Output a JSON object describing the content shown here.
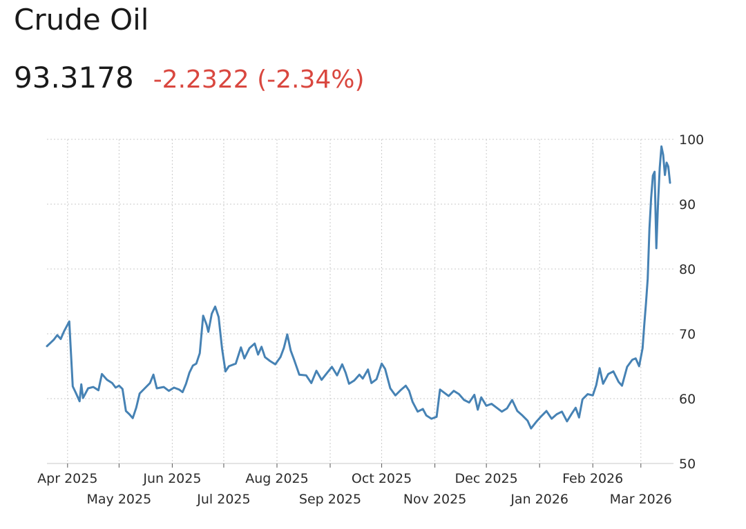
{
  "header": {
    "title": "Crude Oil",
    "price": "93.3178",
    "change": "-2.2322 (-2.34%)"
  },
  "colors": {
    "line": "#4682b4",
    "grid": "#c8c8c8",
    "change_negative": "#d9473f"
  },
  "chart_data": {
    "type": "line",
    "title": "Crude Oil",
    "xlabel": "",
    "ylabel": "",
    "x_range": [
      "2025-03-20",
      "2026-03-20"
    ],
    "ylim": [
      50,
      100
    ],
    "y_ticks": [
      50,
      60,
      70,
      80,
      90,
      100
    ],
    "y_axis_position": "right",
    "grid": true,
    "x_tick_labels_upper": [
      {
        "date": "2025-04-01",
        "label": "Apr 2025"
      },
      {
        "date": "2025-06-01",
        "label": "Jun 2025"
      },
      {
        "date": "2025-08-01",
        "label": "Aug 2025"
      },
      {
        "date": "2025-10-01",
        "label": "Oct 2025"
      },
      {
        "date": "2025-12-01",
        "label": "Dec 2025"
      },
      {
        "date": "2026-02-01",
        "label": "Feb 2026"
      }
    ],
    "x_tick_labels_lower": [
      {
        "date": "2025-05-01",
        "label": "May 2025"
      },
      {
        "date": "2025-07-01",
        "label": "Jul 2025"
      },
      {
        "date": "2025-09-01",
        "label": "Sep 2025"
      },
      {
        "date": "2025-11-01",
        "label": "Nov 2025"
      },
      {
        "date": "2026-01-01",
        "label": "Jan 2026"
      },
      {
        "date": "2026-03-01",
        "label": "Mar 2026"
      }
    ],
    "series": [
      {
        "values": [
          [
            "2025-03-20",
            68.1
          ],
          [
            "2025-03-22",
            68.6
          ],
          [
            "2025-03-24",
            69.1
          ],
          [
            "2025-03-26",
            69.8
          ],
          [
            "2025-03-28",
            69.2
          ],
          [
            "2025-03-30",
            70.4
          ],
          [
            "2025-04-01",
            71.4
          ],
          [
            "2025-04-02",
            71.9
          ],
          [
            "2025-04-03",
            66.9
          ],
          [
            "2025-04-04",
            61.9
          ],
          [
            "2025-04-06",
            60.8
          ],
          [
            "2025-04-08",
            59.6
          ],
          [
            "2025-04-09",
            62.2
          ],
          [
            "2025-04-10",
            60.1
          ],
          [
            "2025-04-13",
            61.6
          ],
          [
            "2025-04-16",
            61.8
          ],
          [
            "2025-04-19",
            61.3
          ],
          [
            "2025-04-21",
            63.8
          ],
          [
            "2025-04-24",
            62.9
          ],
          [
            "2025-04-27",
            62.4
          ],
          [
            "2025-04-29",
            61.7
          ],
          [
            "2025-05-01",
            62.0
          ],
          [
            "2025-05-03",
            61.5
          ],
          [
            "2025-05-05",
            58.1
          ],
          [
            "2025-05-07",
            57.6
          ],
          [
            "2025-05-09",
            57.0
          ],
          [
            "2025-05-11",
            58.6
          ],
          [
            "2025-05-13",
            60.8
          ],
          [
            "2025-05-16",
            61.6
          ],
          [
            "2025-05-19",
            62.4
          ],
          [
            "2025-05-21",
            63.7
          ],
          [
            "2025-05-23",
            61.6
          ],
          [
            "2025-05-27",
            61.8
          ],
          [
            "2025-05-30",
            61.2
          ],
          [
            "2025-06-02",
            61.7
          ],
          [
            "2025-06-05",
            61.4
          ],
          [
            "2025-06-07",
            61.0
          ],
          [
            "2025-06-09",
            62.3
          ],
          [
            "2025-06-11",
            64.0
          ],
          [
            "2025-06-13",
            65.1
          ],
          [
            "2025-06-15",
            65.4
          ],
          [
            "2025-06-17",
            67.0
          ],
          [
            "2025-06-19",
            72.8
          ],
          [
            "2025-06-21",
            71.4
          ],
          [
            "2025-06-22",
            70.3
          ],
          [
            "2025-06-24",
            73.1
          ],
          [
            "2025-06-26",
            74.2
          ],
          [
            "2025-06-28",
            72.6
          ],
          [
            "2025-06-30",
            67.7
          ],
          [
            "2025-07-02",
            64.2
          ],
          [
            "2025-07-04",
            65.0
          ],
          [
            "2025-07-08",
            65.4
          ],
          [
            "2025-07-11",
            67.9
          ],
          [
            "2025-07-13",
            66.2
          ],
          [
            "2025-07-16",
            67.8
          ],
          [
            "2025-07-19",
            68.5
          ],
          [
            "2025-07-21",
            66.8
          ],
          [
            "2025-07-23",
            68.0
          ],
          [
            "2025-07-25",
            66.4
          ],
          [
            "2025-07-28",
            65.8
          ],
          [
            "2025-07-31",
            65.3
          ],
          [
            "2025-08-03",
            66.4
          ],
          [
            "2025-08-05",
            67.8
          ],
          [
            "2025-08-07",
            69.9
          ],
          [
            "2025-08-09",
            67.4
          ],
          [
            "2025-08-11",
            66.0
          ],
          [
            "2025-08-14",
            63.7
          ],
          [
            "2025-08-18",
            63.6
          ],
          [
            "2025-08-21",
            62.4
          ],
          [
            "2025-08-24",
            64.3
          ],
          [
            "2025-08-27",
            62.9
          ],
          [
            "2025-08-30",
            63.9
          ],
          [
            "2025-09-02",
            64.9
          ],
          [
            "2025-09-05",
            63.6
          ],
          [
            "2025-09-08",
            65.3
          ],
          [
            "2025-09-10",
            64.0
          ],
          [
            "2025-09-12",
            62.3
          ],
          [
            "2025-09-15",
            62.8
          ],
          [
            "2025-09-18",
            63.7
          ],
          [
            "2025-09-20",
            63.1
          ],
          [
            "2025-09-23",
            64.5
          ],
          [
            "2025-09-25",
            62.4
          ],
          [
            "2025-09-28",
            63.0
          ],
          [
            "2025-10-01",
            65.4
          ],
          [
            "2025-10-03",
            64.6
          ],
          [
            "2025-10-06",
            61.6
          ],
          [
            "2025-10-09",
            60.5
          ],
          [
            "2025-10-12",
            61.3
          ],
          [
            "2025-10-15",
            62.0
          ],
          [
            "2025-10-17",
            61.2
          ],
          [
            "2025-10-19",
            59.5
          ],
          [
            "2025-10-22",
            58.0
          ],
          [
            "2025-10-25",
            58.4
          ],
          [
            "2025-10-27",
            57.4
          ],
          [
            "2025-10-30",
            56.9
          ],
          [
            "2025-11-02",
            57.2
          ],
          [
            "2025-11-04",
            61.4
          ],
          [
            "2025-11-06",
            61.0
          ],
          [
            "2025-11-09",
            60.4
          ],
          [
            "2025-11-12",
            61.2
          ],
          [
            "2025-11-15",
            60.7
          ],
          [
            "2025-11-18",
            59.8
          ],
          [
            "2025-11-21",
            59.4
          ],
          [
            "2025-11-24",
            60.6
          ],
          [
            "2025-11-26",
            58.3
          ],
          [
            "2025-11-28",
            60.2
          ],
          [
            "2025-12-01",
            58.9
          ],
          [
            "2025-12-04",
            59.2
          ],
          [
            "2025-12-07",
            58.6
          ],
          [
            "2025-12-10",
            58.0
          ],
          [
            "2025-12-13",
            58.5
          ],
          [
            "2025-12-16",
            59.8
          ],
          [
            "2025-12-19",
            58.1
          ],
          [
            "2025-12-22",
            57.4
          ],
          [
            "2025-12-25",
            56.6
          ],
          [
            "2025-12-27",
            55.4
          ],
          [
            "2025-12-30",
            56.4
          ],
          [
            "2026-01-02",
            57.3
          ],
          [
            "2026-01-05",
            58.1
          ],
          [
            "2026-01-08",
            56.9
          ],
          [
            "2026-01-11",
            57.6
          ],
          [
            "2026-01-14",
            58.0
          ],
          [
            "2026-01-17",
            56.5
          ],
          [
            "2026-01-20",
            57.8
          ],
          [
            "2026-01-22",
            58.6
          ],
          [
            "2026-01-24",
            57.1
          ],
          [
            "2026-01-26",
            59.9
          ],
          [
            "2026-01-29",
            60.7
          ],
          [
            "2026-02-01",
            60.5
          ],
          [
            "2026-02-03",
            62.1
          ],
          [
            "2026-02-05",
            64.7
          ],
          [
            "2026-02-07",
            62.3
          ],
          [
            "2026-02-10",
            63.8
          ],
          [
            "2026-02-13",
            64.2
          ],
          [
            "2026-02-16",
            62.6
          ],
          [
            "2026-02-18",
            62.0
          ],
          [
            "2026-02-21",
            64.9
          ],
          [
            "2026-02-24",
            66.0
          ],
          [
            "2026-02-26",
            66.2
          ],
          [
            "2026-02-28",
            65.0
          ],
          [
            "2026-03-02",
            67.8
          ],
          [
            "2026-03-03",
            71.5
          ],
          [
            "2026-03-04",
            74.7
          ],
          [
            "2026-03-05",
            78.5
          ],
          [
            "2026-03-06",
            86.2
          ],
          [
            "2026-03-07",
            91.0
          ],
          [
            "2026-03-08",
            94.4
          ],
          [
            "2026-03-09",
            95.0
          ],
          [
            "2026-03-10",
            83.2
          ],
          [
            "2026-03-11",
            90.0
          ],
          [
            "2026-03-12",
            95.6
          ],
          [
            "2026-03-13",
            98.9
          ],
          [
            "2026-03-14",
            97.6
          ],
          [
            "2026-03-15",
            94.5
          ],
          [
            "2026-03-16",
            96.4
          ],
          [
            "2026-03-17",
            95.8
          ],
          [
            "2026-03-18",
            93.3
          ]
        ]
      }
    ]
  }
}
